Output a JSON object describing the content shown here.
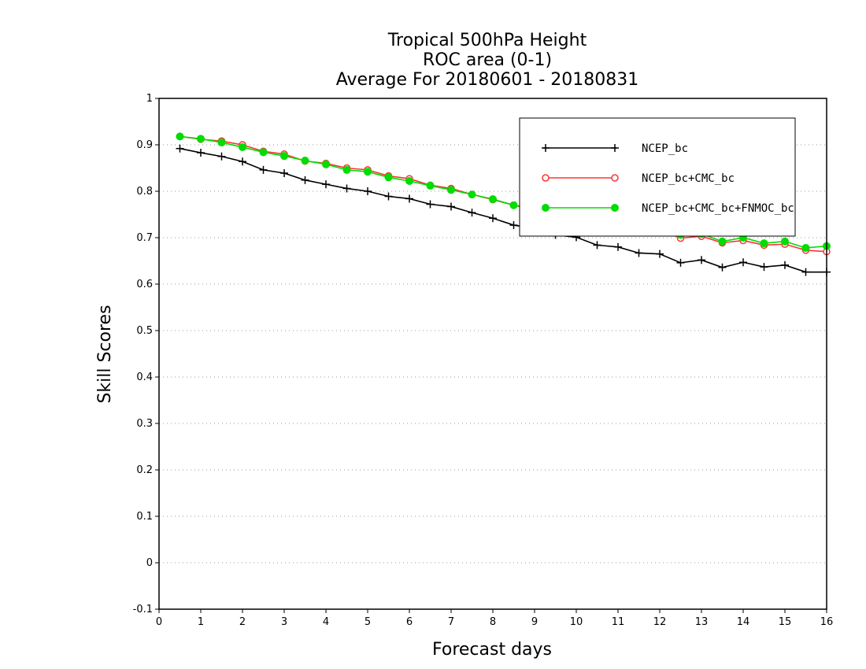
{
  "chart_data": {
    "type": "line",
    "title": [
      "Tropical 500hPa Height",
      "ROC area (0-1)",
      "Average For 20180601 - 20180831"
    ],
    "xlabel": "Forecast days",
    "ylabel": "Skill Scores",
    "xlim": [
      0,
      16
    ],
    "ylim": [
      -0.1,
      1
    ],
    "xticks": [
      "0",
      "1",
      "2",
      "3",
      "4",
      "5",
      "6",
      "7",
      "8",
      "9",
      "10",
      "11",
      "12",
      "13",
      "14",
      "15",
      "16"
    ],
    "yticks": [
      "-0.1",
      "0",
      "0.1",
      "0.2",
      "0.3",
      "0.4",
      "0.5",
      "0.6",
      "0.7",
      "0.8",
      "0.9",
      "1"
    ],
    "grid": "horizontal dotted",
    "legend_position": "top-right",
    "x": [
      0.5,
      1,
      1.5,
      2,
      2.5,
      3,
      3.5,
      4,
      4.5,
      5,
      5.5,
      6,
      6.5,
      7,
      7.5,
      8,
      8.5,
      9,
      9.5,
      10,
      10.5,
      11,
      11.5,
      12,
      12.5,
      13,
      13.5,
      14,
      14.5,
      15,
      15.5,
      16
    ],
    "series": [
      {
        "name": "NCEP_bc",
        "color": "#000000",
        "marker": "plus",
        "values": [
          0.892,
          0.883,
          0.875,
          0.864,
          0.846,
          0.839,
          0.824,
          0.815,
          0.806,
          0.8,
          0.789,
          0.784,
          0.772,
          0.767,
          0.754,
          0.742,
          0.727,
          0.72,
          0.706,
          0.701,
          0.684,
          0.68,
          0.667,
          0.665,
          0.646,
          0.652,
          0.636,
          0.647,
          0.637,
          0.641,
          0.626,
          0.626
        ]
      },
      {
        "name": "NCEP_bc+CMC_bc",
        "color": "#ff3333",
        "marker": "open-circle",
        "values": [
          0.918,
          0.912,
          0.908,
          0.9,
          0.886,
          0.88,
          0.865,
          0.86,
          0.85,
          0.846,
          0.833,
          0.827,
          0.813,
          0.806,
          0.793,
          0.782,
          0.77,
          0.76,
          0.755,
          0.748,
          0.741,
          0.732,
          0.727,
          0.718,
          0.699,
          0.703,
          0.689,
          0.694,
          0.684,
          0.686,
          0.673,
          0.67
        ]
      },
      {
        "name": "NCEP_bc+CMC_bc+FNMOC_bc",
        "color": "#00dd00",
        "marker": "filled-circle",
        "values": [
          0.918,
          0.913,
          0.905,
          0.895,
          0.884,
          0.876,
          0.866,
          0.858,
          0.846,
          0.842,
          0.83,
          0.822,
          0.812,
          0.803,
          0.793,
          0.783,
          0.77,
          0.763,
          0.757,
          0.751,
          0.744,
          0.735,
          0.73,
          0.72,
          0.706,
          0.708,
          0.692,
          0.7,
          0.688,
          0.692,
          0.678,
          0.682
        ]
      }
    ]
  }
}
